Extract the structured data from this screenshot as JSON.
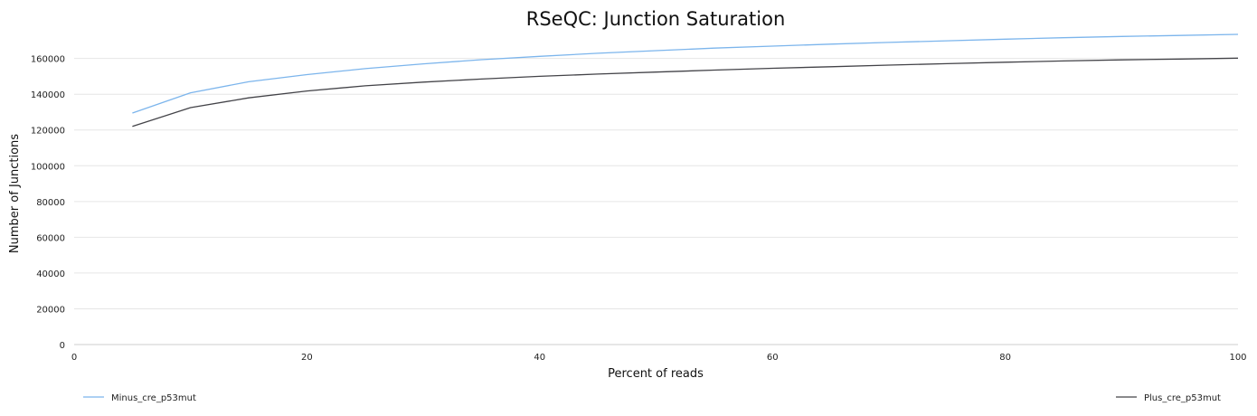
{
  "chart_data": {
    "type": "line",
    "title": "RSeQC: Junction Saturation",
    "xlabel": "Percent of reads",
    "ylabel": "Number of Junctions",
    "xlim": [
      0,
      100
    ],
    "ylim": [
      0,
      175000
    ],
    "x_ticks": [
      0,
      20,
      40,
      60,
      80,
      100
    ],
    "y_ticks": [
      0,
      20000,
      40000,
      60000,
      80000,
      100000,
      120000,
      140000,
      160000
    ],
    "grid": "horizontal",
    "legend_placement": "bottom",
    "x": [
      5,
      10,
      15,
      20,
      25,
      30,
      35,
      40,
      45,
      50,
      55,
      60,
      65,
      70,
      75,
      80,
      85,
      90,
      95,
      100
    ],
    "series": [
      {
        "name": "Minus_cre_p53mut",
        "color": "#7cb5ec",
        "values": [
          129500,
          140800,
          147000,
          151000,
          154300,
          157000,
          159300,
          161200,
          162900,
          164400,
          165800,
          166900,
          168000,
          169000,
          169900,
          170800,
          171600,
          172300,
          172900,
          173500
        ]
      },
      {
        "name": "Plus_cre_p53mut",
        "color": "#434348",
        "values": [
          122000,
          132500,
          138000,
          141800,
          144700,
          146800,
          148500,
          150000,
          151300,
          152400,
          153500,
          154500,
          155400,
          156300,
          157100,
          157900,
          158600,
          159200,
          159700,
          160200
        ]
      }
    ]
  }
}
